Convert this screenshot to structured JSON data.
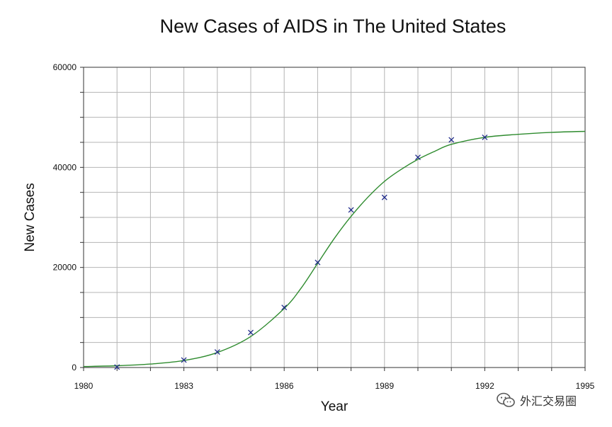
{
  "chart_data": {
    "type": "scatter",
    "title": "New Cases of AIDS in The United States",
    "xlabel": "Year",
    "ylabel": "New Cases",
    "xlim": [
      1980,
      1995
    ],
    "ylim": [
      0,
      60000
    ],
    "x_ticks": [
      "1980",
      "1983",
      "1986",
      "1989",
      "1992",
      "1995"
    ],
    "y_ticks": [
      "0",
      "20000",
      "40000",
      "60000"
    ],
    "grid": true,
    "series": [
      {
        "kind": "points",
        "marker": "x",
        "color": "#1f2a8a",
        "x": [
          1981,
          1983,
          1984,
          1985,
          1986,
          1987,
          1988,
          1989,
          1990,
          1991,
          1992
        ],
        "y": [
          100,
          1500,
          3100,
          7000,
          12000,
          21000,
          31500,
          34000,
          42000,
          45500,
          46000
        ]
      },
      {
        "kind": "fitted-curve",
        "color": "#2e8b2e",
        "x": [
          1980,
          1981,
          1982,
          1983,
          1984,
          1985,
          1986,
          1986.5,
          1987,
          1987.5,
          1988,
          1988.5,
          1989,
          1989.5,
          1990,
          1990.5,
          1991,
          1992,
          1993,
          1994,
          1995
        ],
        "y": [
          200,
          350,
          700,
          1400,
          3000,
          6200,
          11800,
          15800,
          20800,
          25800,
          30200,
          34000,
          37200,
          39600,
          41600,
          43200,
          44600,
          46000,
          46600,
          47000,
          47200
        ]
      }
    ]
  },
  "watermark": {
    "text": "外汇交易圈",
    "icon": "wechat-icon"
  }
}
